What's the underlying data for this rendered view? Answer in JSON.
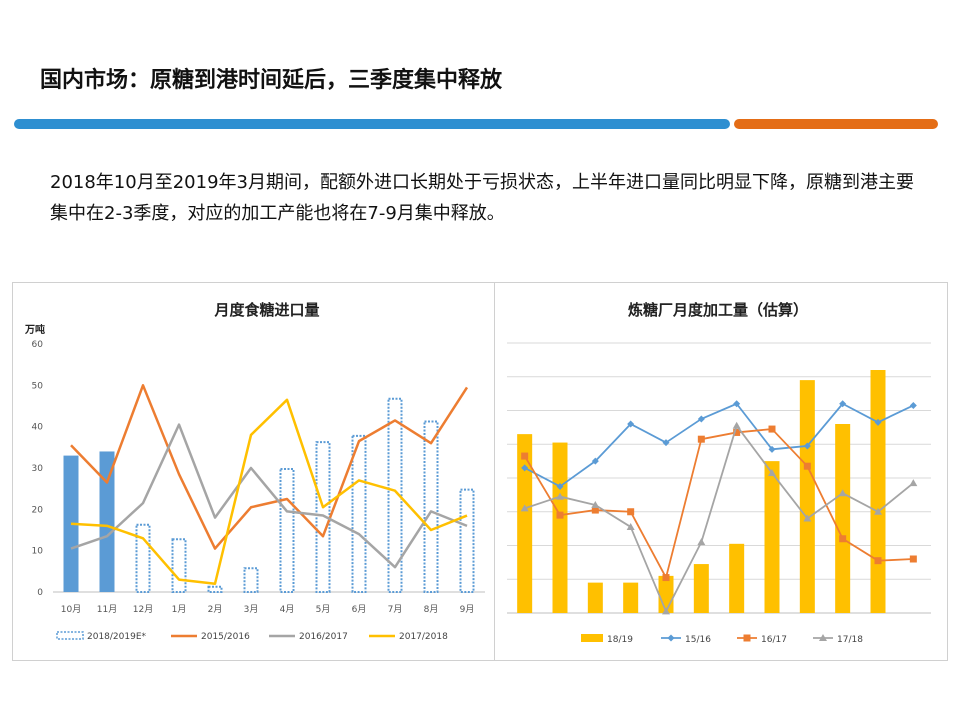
{
  "slide": {
    "title": "国内市场：原糖到港时间延后，三季度集中释放",
    "description": "2018年10月至2019年3月期间，配额外进口长期处于亏损状态，上半年进口量同比明显下降，原糖到港主要集中在2-3季度，对应的加工产能也将在7-9月集中释放。"
  },
  "colors": {
    "accent_blue": "#2e8fd1",
    "accent_orange": "#e46d16"
  },
  "chart_data": [
    {
      "type": "bar",
      "title": "月度食糖进口量",
      "ylabel": "万吨",
      "ylim": [
        0,
        60
      ],
      "yticks": [
        0,
        10,
        20,
        30,
        40,
        50,
        60
      ],
      "categories": [
        "10月",
        "11月",
        "12月",
        "1月",
        "2月",
        "3月",
        "4月",
        "5月",
        "6月",
        "7月",
        "8月",
        "9月"
      ],
      "grid": false,
      "legend_position": "bottom",
      "bar_series": {
        "name": "2018/2019E*",
        "values": [
          33,
          34,
          16.5,
          13,
          1.5,
          6,
          30,
          36.5,
          38,
          47,
          41.5,
          25
        ],
        "estimated_from_index": 2,
        "color": "#5b9bd5"
      },
      "series": [
        {
          "name": "2015/2016",
          "color": "#ed7d31",
          "values": [
            35.5,
            26.5,
            50,
            28.5,
            10.5,
            20.5,
            22.5,
            13.5,
            36.5,
            41.5,
            36,
            49.5
          ]
        },
        {
          "name": "2016/2017",
          "color": "#a5a5a5",
          "values": [
            10.5,
            13.5,
            21.5,
            40.5,
            18,
            30,
            19.5,
            18.5,
            14,
            6,
            19.5,
            16
          ]
        },
        {
          "name": "2017/2018",
          "color": "#ffc000",
          "values": [
            16.5,
            16,
            13,
            3,
            2,
            38,
            46.5,
            20.5,
            27,
            24.5,
            15,
            18.5
          ]
        }
      ]
    },
    {
      "type": "bar",
      "title": "炼糖厂月度加工量（估算）",
      "ylim": [
        0,
        80
      ],
      "grid": true,
      "legend_position": "bottom",
      "bar_series": {
        "name": "18/19",
        "color": "#ffc000",
        "values": [
          53,
          50.5,
          9,
          9,
          11,
          14.5,
          20.5,
          45,
          69,
          56,
          72
        ]
      },
      "series": [
        {
          "name": "15/16",
          "color": "#5b9bd5",
          "marker": "diamond",
          "values": [
            43,
            37.5,
            45,
            56,
            50.5,
            57.5,
            62,
            48.5,
            49.5,
            62,
            56.5,
            61.5
          ]
        },
        {
          "name": "16/17",
          "color": "#ed7d31",
          "marker": "square",
          "values": [
            46.5,
            29,
            30.5,
            30,
            10.5,
            51.5,
            53.5,
            54.5,
            43.5,
            22,
            15.5,
            16
          ]
        },
        {
          "name": "17/18",
          "color": "#a5a5a5",
          "marker": "triangle",
          "values": [
            31,
            34.5,
            32,
            25.5,
            0.5,
            21,
            55.5,
            41.5,
            28,
            35.5,
            30,
            38.5
          ]
        }
      ]
    }
  ]
}
